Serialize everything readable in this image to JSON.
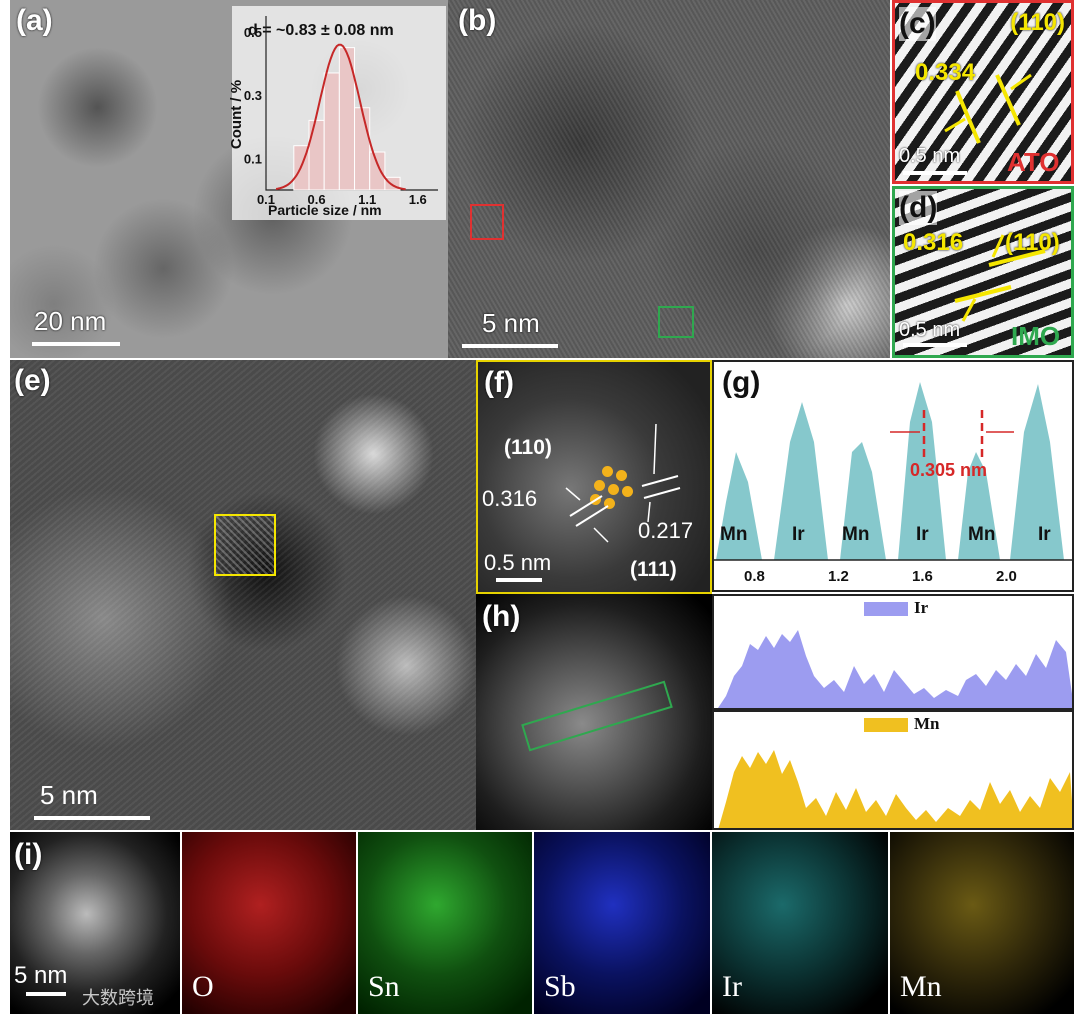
{
  "panels": {
    "a": {
      "label": "(a)",
      "scale": "20 nm"
    },
    "a_inset": {
      "annotation": "d = ~0.83 ± 0.08 nm",
      "ylabel": "Count / %",
      "xlabel": "Particle size / nm",
      "yticks": [
        "0.5",
        "0.3",
        "0.1"
      ],
      "xticks": [
        "0.1",
        "0.6",
        "1.1",
        "1.6"
      ]
    },
    "b": {
      "label": "(b)",
      "scale": "5 nm"
    },
    "c": {
      "label": "(c)",
      "plane": "(110)",
      "d": "0.334",
      "scale": "0.5 nm",
      "material": "ATO"
    },
    "d": {
      "label": "(d)",
      "plane": "(110)",
      "d": "0.316",
      "scale": "0.5 nm",
      "material": "IMO"
    },
    "e": {
      "label": "(e)",
      "scale": "5 nm"
    },
    "f": {
      "label": "(f)",
      "plane1": "(110)",
      "d1": "0.316",
      "d2": "0.217",
      "plane2": "(111)",
      "scale": "0.5 nm"
    },
    "g": {
      "label": "(g)",
      "spacing": "0.305 nm",
      "atoms": [
        "Mn",
        "Ir",
        "Mn",
        "Ir",
        "Mn",
        "Ir"
      ],
      "xticks": [
        "0.8",
        "1.2",
        "1.6",
        "2.0"
      ]
    },
    "h": {
      "label": "(h)"
    },
    "ir_profile": {
      "legend": "Ir"
    },
    "mn_profile": {
      "legend": "Mn"
    },
    "i": {
      "label": "(i)",
      "scale": "5 nm",
      "maps": [
        "O",
        "Sn",
        "Sb",
        "Ir",
        "Mn"
      ]
    }
  },
  "watermark": "大数跨境",
  "colors": {
    "accent_yellow": "#f5e600",
    "ato_red": "#e03131",
    "imo_green": "#2fa84f",
    "profile_teal": "#86c8cc",
    "ir_purple": "#9c9cf0",
    "mn_gold": "#f0c020"
  },
  "chart_data": [
    {
      "type": "bar",
      "title": "d = ~0.83 ± 0.08 nm",
      "xlabel": "Particle size / nm",
      "ylabel": "Count / %",
      "categories": [
        "0.45",
        "0.6",
        "0.75",
        "0.9",
        "1.05",
        "1.2",
        "1.35"
      ],
      "values": [
        0.14,
        0.22,
        0.37,
        0.45,
        0.26,
        0.12,
        0.04
      ],
      "fit": "gaussian",
      "ylim": [
        0,
        0.55
      ],
      "xlim": [
        0.1,
        1.8
      ]
    }
  ]
}
